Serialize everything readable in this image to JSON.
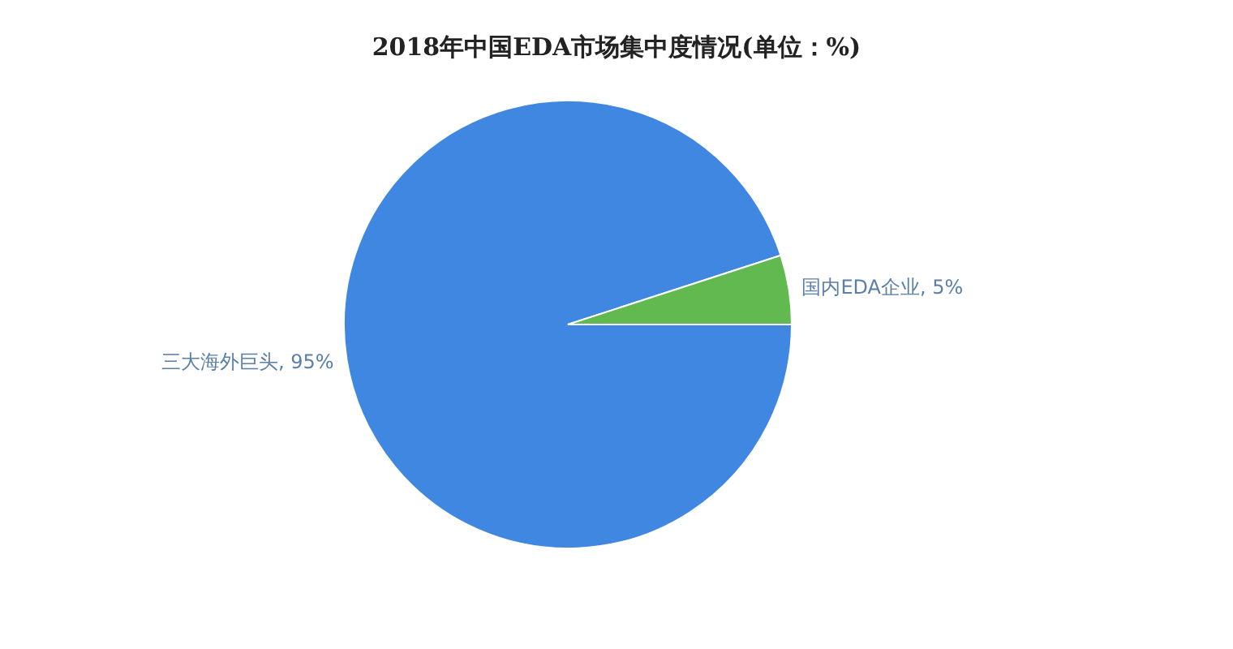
{
  "chart_data": {
    "type": "pie",
    "title": "2018年中国EDA市场集中度情况(单位：%)",
    "categories": [
      "三大海外巨头",
      "国内EDA企业"
    ],
    "values": [
      95,
      5
    ],
    "value_labels": [
      "95%",
      "5%"
    ],
    "colors": [
      "#3f87e0",
      "#62b94f"
    ]
  }
}
